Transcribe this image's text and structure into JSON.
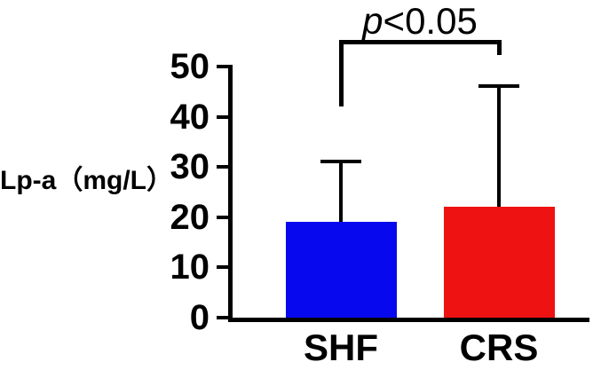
{
  "chart_data": {
    "type": "bar",
    "title": "",
    "categories": [
      "SHF",
      "CRS"
    ],
    "values": [
      19,
      22
    ],
    "error_up": [
      12,
      24
    ],
    "xlabel": "",
    "ylabel": "Lp-a（mg/L）",
    "ylim": [
      0,
      50
    ],
    "yticks": [
      0,
      10,
      20,
      30,
      40,
      50
    ],
    "bar_colors": [
      "#0808ee",
      "#ee1212"
    ],
    "grid": false,
    "legend": "none",
    "annotation": "p<0.05",
    "annotation_between": [
      "SHF",
      "CRS"
    ]
  },
  "significance": {
    "p": "p",
    "rest": "<0.05"
  }
}
